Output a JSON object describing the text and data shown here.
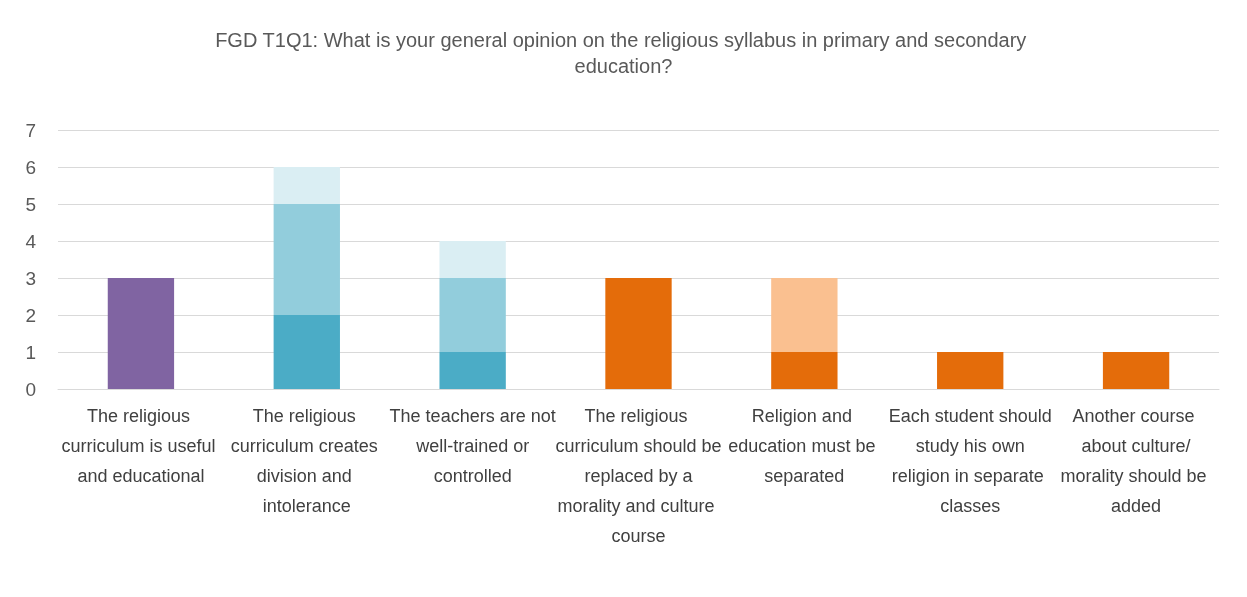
{
  "chart_data": {
    "type": "bar",
    "title": "FGD T1Q1: What is your general opinion on the religious syllabus in primary and secondary education?",
    "categories": [
      "The religious curriculum is useful and educational",
      "The religious curriculum creates division and intolerance",
      "The teachers are not well-trained or controlled",
      "The religious curriculum should be replaced by a morality and culture course",
      "Religion and education must be separated",
      "Each student should study his own religion in separate classes",
      "Another course about culture/morality should be added"
    ],
    "stacked": true,
    "series": [
      {
        "values": [
          3,
          2,
          1,
          3,
          1,
          1,
          1
        ],
        "colors": [
          "#8064a2",
          "#4bacc6",
          "#4bacc6",
          "#e46c0a",
          "#e46c0a",
          "#e46c0a",
          "#e46c0a"
        ]
      },
      {
        "values": [
          null,
          3,
          2,
          null,
          2,
          null,
          null
        ],
        "colors": [
          "#92cddc",
          "#92cddc",
          "#92cddc",
          "#fac090",
          "#fac090",
          "#fac090",
          "#fac090"
        ]
      },
      {
        "values": [
          null,
          1,
          1,
          null,
          null,
          null,
          null
        ],
        "colors": [
          "#daeef3",
          "#daeef3",
          "#daeef3",
          "#daeef3",
          "#daeef3",
          "#daeef3",
          "#daeef3"
        ]
      }
    ],
    "ylim": [
      0,
      7
    ],
    "yticks": [
      0,
      1,
      2,
      3,
      4,
      5,
      6,
      7
    ],
    "grid": true
  }
}
